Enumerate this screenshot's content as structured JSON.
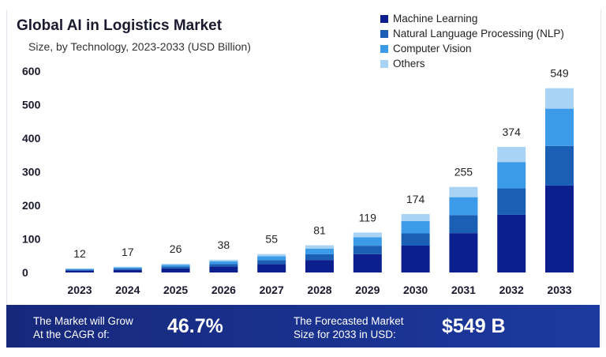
{
  "header": {
    "title": "Global AI in Logistics Market",
    "subtitle": "Size, by Technology, 2023-2033 (USD Billion)"
  },
  "legend": [
    {
      "label": "Machine Learning",
      "color": "#0b1f8f"
    },
    {
      "label": "Natural Language Processing (NLP)",
      "color": "#1a5fb4"
    },
    {
      "label": "Computer Vision",
      "color": "#3c9be8"
    },
    {
      "label": "Others",
      "color": "#a8d3f5"
    }
  ],
  "chart_data": {
    "type": "bar",
    "stacked": true,
    "categories": [
      "2023",
      "2024",
      "2025",
      "2026",
      "2027",
      "2028",
      "2029",
      "2030",
      "2031",
      "2032",
      "2033"
    ],
    "totals": [
      12,
      17,
      26,
      38,
      55,
      81,
      119,
      174,
      255,
      374,
      549
    ],
    "series": [
      {
        "name": "Machine Learning",
        "color": "#0b1f8f",
        "values": [
          5.5,
          7.8,
          12.0,
          17.5,
          25.3,
          37.3,
          54.7,
          80.0,
          117.3,
          172.0,
          259.0
        ]
      },
      {
        "name": "Natural Language Processing (NLP)",
        "color": "#1a5fb4",
        "values": [
          2.5,
          3.6,
          5.5,
          8.0,
          11.6,
          17.0,
          25.0,
          36.5,
          53.6,
          78.5,
          118.0
        ]
      },
      {
        "name": "Computer Vision",
        "color": "#3c9be8",
        "values": [
          2.5,
          3.6,
          5.4,
          8.0,
          11.5,
          17.0,
          25.0,
          36.5,
          53.5,
          78.5,
          111.0
        ]
      },
      {
        "name": "Others",
        "color": "#a8d3f5",
        "values": [
          1.5,
          2.0,
          3.1,
          4.5,
          6.6,
          9.7,
          14.3,
          21.0,
          30.6,
          45.0,
          61.0
        ]
      }
    ],
    "yticks": [
      0,
      100,
      200,
      300,
      400,
      500,
      600
    ],
    "ylim": [
      0,
      600
    ],
    "grid": false,
    "legend_position": "top-right"
  },
  "footer": {
    "cagr_label_line1": "The Market will Grow",
    "cagr_label_line2": "At the CAGR of:",
    "cagr_value": "46.7%",
    "forecast_label_line1": "The Forecasted Market",
    "forecast_label_line2": "Size for 2033 in USD:",
    "forecast_value": "$549 B"
  }
}
